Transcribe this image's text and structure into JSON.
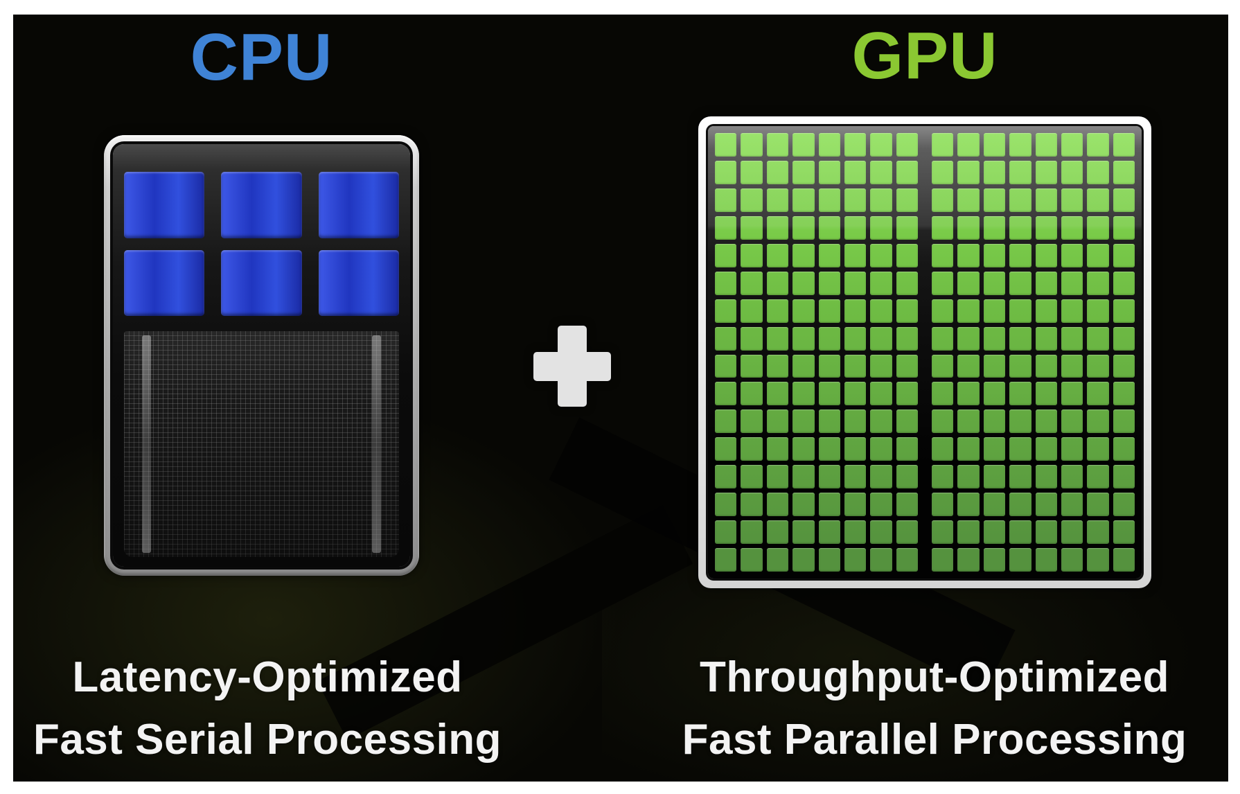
{
  "page": {
    "background": "#ffffff"
  },
  "slide": {
    "background": "#070704"
  },
  "cpu": {
    "title": "CPU",
    "title_color": "#3f83d6",
    "caption": [
      "Latency-Optimized",
      "Fast Serial Processing"
    ],
    "cores": {
      "rows": 2,
      "cols": 3,
      "gradient": [
        "#3e59e8",
        "#2036c0",
        "#3150de",
        "#1a2aa4"
      ]
    }
  },
  "gpu": {
    "title": "GPU",
    "title_color": "#8bc832",
    "caption": [
      "Throughput-Optimized",
      "Fast Parallel Processing"
    ],
    "grid": {
      "halves": 2,
      "rows": 16,
      "cols": 8,
      "top_color": "#82dc48",
      "bottom_color": "#55923e"
    }
  },
  "plus": {
    "glyph": "+",
    "color": "#e3e3e3"
  },
  "caption_color": "#f3f3f3"
}
